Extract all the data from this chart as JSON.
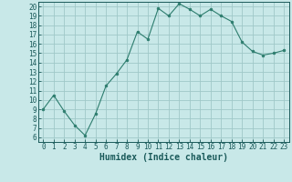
{
  "x": [
    0,
    1,
    2,
    3,
    4,
    5,
    6,
    7,
    8,
    9,
    10,
    11,
    12,
    13,
    14,
    15,
    16,
    17,
    18,
    19,
    20,
    21,
    22,
    23
  ],
  "y": [
    9,
    10.5,
    8.8,
    7.3,
    6.2,
    8.5,
    11.5,
    12.8,
    14.3,
    17.3,
    16.5,
    19.8,
    19,
    20.3,
    19.7,
    19,
    19.7,
    19,
    18.4,
    16.2,
    15.2,
    14.8,
    15,
    15.3
  ],
  "line_color": "#2d7d6e",
  "marker_color": "#2d7d6e",
  "bg_color": "#c8e8e8",
  "grid_color": "#a0c8c8",
  "xlabel": "Humidex (Indice chaleur)",
  "xlim": [
    -0.5,
    23.5
  ],
  "ylim": [
    5.5,
    20.5
  ],
  "yticks": [
    6,
    7,
    8,
    9,
    10,
    11,
    12,
    13,
    14,
    15,
    16,
    17,
    18,
    19,
    20
  ],
  "xticks": [
    0,
    1,
    2,
    3,
    4,
    5,
    6,
    7,
    8,
    9,
    10,
    11,
    12,
    13,
    14,
    15,
    16,
    17,
    18,
    19,
    20,
    21,
    22,
    23
  ],
  "tick_color": "#1a5a5a",
  "label_fontsize": 5.5,
  "axis_label_fontsize": 7
}
